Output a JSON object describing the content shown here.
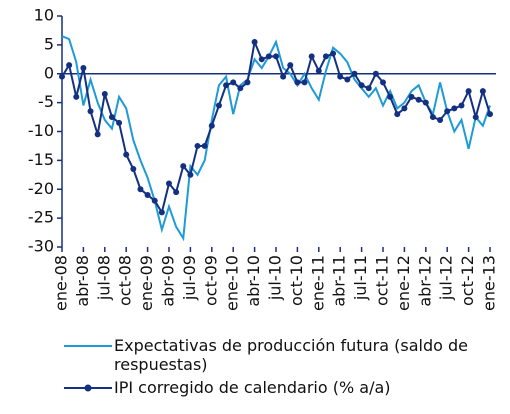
{
  "chart_data": {
    "type": "line",
    "categories": [
      "ene-08",
      null,
      null,
      "abr-08",
      null,
      null,
      "jul-08",
      null,
      null,
      "oct-08",
      null,
      null,
      "ene-09",
      null,
      null,
      "abr-09",
      null,
      null,
      "jul-09",
      null,
      null,
      "oct-09",
      null,
      null,
      "ene-10",
      null,
      null,
      "abr-10",
      null,
      null,
      "jul-10",
      null,
      null,
      "oct-10",
      null,
      null,
      "ene-11",
      null,
      null,
      "abr-11",
      null,
      null,
      "jul-11",
      null,
      null,
      "oct-11",
      null,
      null,
      "ene-12",
      null,
      null,
      "abr-12",
      null,
      null,
      "jul-12",
      null,
      null,
      "oct-12",
      null,
      null,
      "ene-13"
    ],
    "series": [
      {
        "name": "Expectativas de producción futura (saldo de respuestas)",
        "color": "#1e9ad6",
        "markers": false,
        "values": [
          6.5,
          6,
          2,
          -5.5,
          -1,
          -5,
          -8,
          -9.5,
          -4,
          -6,
          -11.5,
          -15,
          -18,
          -22,
          -27,
          -23,
          -26.5,
          -28.5,
          -16,
          -17.5,
          -15,
          -8,
          -2,
          -0.5,
          -7,
          -2,
          -1,
          2.5,
          1,
          3,
          5.5,
          1,
          0,
          -2,
          0,
          -2.5,
          -4.5,
          0.5,
          4.5,
          3.5,
          2,
          -1,
          -2.5,
          -4,
          -2.5,
          -5.5,
          -3,
          -6,
          -5,
          -3,
          -2,
          -5,
          -7,
          -1.5,
          -6.5,
          -10,
          -8,
          -13,
          -7.5,
          -9,
          -5.5
        ]
      },
      {
        "name": "IPI corregido de calendario (% a/a)",
        "color": "#143080",
        "markers": true,
        "values": [
          -0.5,
          1.5,
          -4,
          1,
          -6.5,
          -10.5,
          -3.5,
          -7.5,
          -8.5,
          -14,
          -16.5,
          -20,
          -21,
          -22,
          -24,
          -19,
          -20.5,
          -16,
          -17.5,
          -12.5,
          -12.5,
          -9,
          -5.5,
          -2,
          -1.5,
          -2.5,
          -1.5,
          5.5,
          2.5,
          3,
          3,
          -0.5,
          1.5,
          -1.5,
          -1.5,
          3,
          0.5,
          3,
          3.5,
          -0.5,
          -1,
          0,
          -2,
          -2.5,
          0,
          -1.5,
          -4,
          -7,
          -6,
          -4,
          -4.5,
          -5,
          -7.5,
          -8,
          -6.5,
          -6,
          -5.5,
          -3,
          -7.5,
          -3,
          -7
        ]
      }
    ],
    "ylim": [
      -30,
      10
    ],
    "yticks": [
      -30,
      -25,
      -20,
      -15,
      -10,
      -5,
      0,
      5,
      10
    ]
  }
}
